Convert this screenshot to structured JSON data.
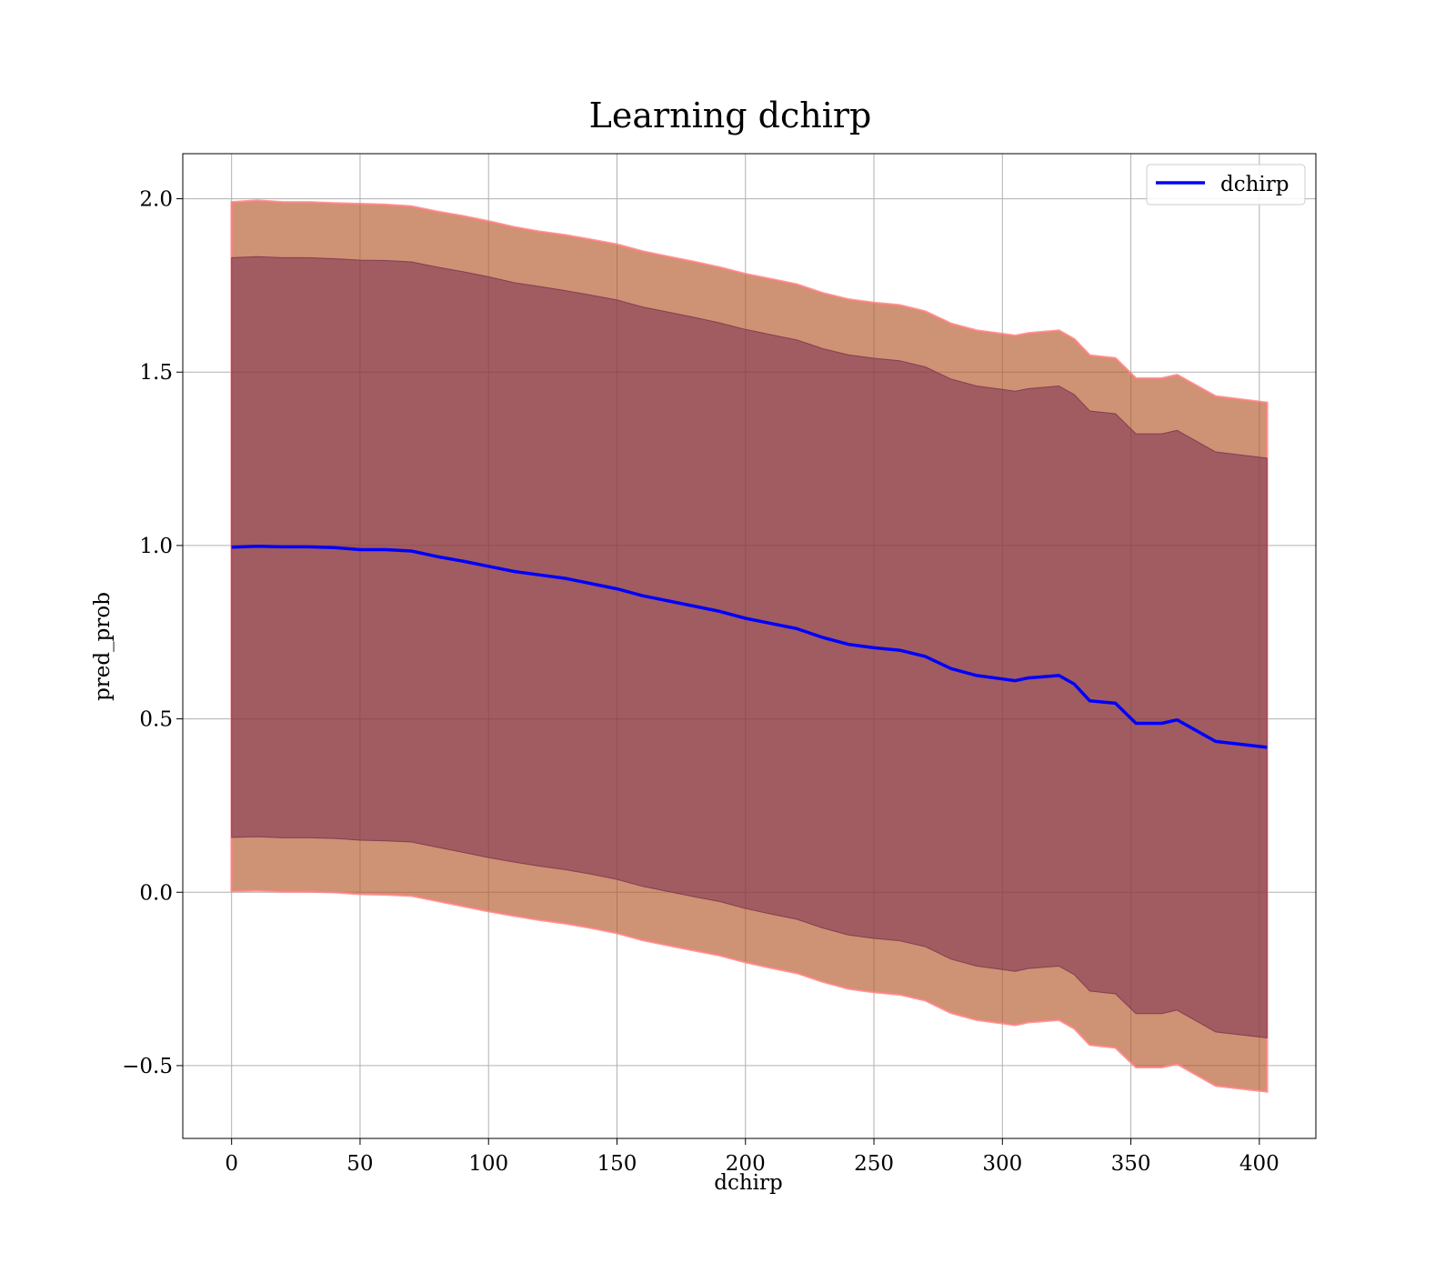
{
  "chart_data": {
    "type": "line",
    "title": "Learning dchirp",
    "xlabel": "dchirp",
    "ylabel": "pred_prob",
    "xlim": [
      -19,
      422
    ],
    "ylim": [
      -0.71,
      2.13
    ],
    "xticks": [
      0,
      50,
      100,
      150,
      200,
      250,
      300,
      350,
      400
    ],
    "xtick_labels": [
      "0",
      "50",
      "100",
      "150",
      "200",
      "250",
      "300",
      "350",
      "400"
    ],
    "yticks": [
      -0.5,
      0.0,
      0.5,
      1.0,
      1.5,
      2.0
    ],
    "ytick_labels": [
      "−0.5",
      "0.0",
      "0.5",
      "1.0",
      "1.5",
      "2.0"
    ],
    "grid": true,
    "legend_position": "top-right",
    "x": [
      0,
      10,
      20,
      30,
      40,
      50,
      60,
      70,
      80,
      90,
      100,
      110,
      120,
      130,
      140,
      150,
      160,
      170,
      180,
      190,
      200,
      210,
      220,
      230,
      240,
      250,
      260,
      270,
      280,
      290,
      300,
      305,
      310,
      322,
      328,
      334,
      344,
      352,
      362,
      368,
      383,
      403
    ],
    "series": [
      {
        "name": "dchirp",
        "color": "#0000ff",
        "values": [
          0.995,
          0.998,
          0.996,
          0.996,
          0.994,
          0.988,
          0.988,
          0.984,
          0.968,
          0.955,
          0.94,
          0.925,
          0.915,
          0.905,
          0.89,
          0.875,
          0.855,
          0.84,
          0.825,
          0.81,
          0.79,
          0.775,
          0.76,
          0.735,
          0.715,
          0.705,
          0.698,
          0.68,
          0.645,
          0.625,
          0.615,
          0.61,
          0.618,
          0.625,
          0.6,
          0.552,
          0.545,
          0.487,
          0.487,
          0.497,
          0.435,
          0.418
        ]
      }
    ],
    "bands": [
      {
        "label": "",
        "color": "#b4572a",
        "opacity": 0.65,
        "edge_color": "#ff8080",
        "upper": [
          1.99,
          1.995,
          1.99,
          1.99,
          1.987,
          1.985,
          1.983,
          1.978,
          1.963,
          1.95,
          1.935,
          1.918,
          1.905,
          1.895,
          1.882,
          1.868,
          1.848,
          1.833,
          1.818,
          1.802,
          1.783,
          1.768,
          1.753,
          1.728,
          1.71,
          1.7,
          1.693,
          1.675,
          1.64,
          1.62,
          1.61,
          1.605,
          1.612,
          1.62,
          1.595,
          1.548,
          1.54,
          1.482,
          1.482,
          1.492,
          1.43,
          1.412
        ],
        "lower": [
          0.003,
          0.005,
          0.002,
          0.002,
          0.0,
          -0.005,
          -0.007,
          -0.01,
          -0.025,
          -0.04,
          -0.055,
          -0.068,
          -0.08,
          -0.09,
          -0.103,
          -0.118,
          -0.138,
          -0.153,
          -0.168,
          -0.182,
          -0.202,
          -0.218,
          -0.233,
          -0.258,
          -0.278,
          -0.288,
          -0.295,
          -0.312,
          -0.348,
          -0.368,
          -0.378,
          -0.383,
          -0.375,
          -0.368,
          -0.393,
          -0.44,
          -0.448,
          -0.505,
          -0.505,
          -0.495,
          -0.558,
          -0.575
        ]
      },
      {
        "label": "",
        "color": "#7a3050",
        "opacity": 0.55,
        "edge_color": "#7a3050",
        "upper": [
          1.83,
          1.833,
          1.83,
          1.83,
          1.827,
          1.823,
          1.822,
          1.818,
          1.803,
          1.79,
          1.775,
          1.758,
          1.747,
          1.735,
          1.722,
          1.708,
          1.688,
          1.673,
          1.658,
          1.642,
          1.623,
          1.608,
          1.593,
          1.568,
          1.55,
          1.54,
          1.533,
          1.515,
          1.48,
          1.46,
          1.45,
          1.445,
          1.452,
          1.46,
          1.435,
          1.388,
          1.38,
          1.322,
          1.322,
          1.332,
          1.27,
          1.252
        ],
        "lower": [
          0.158,
          0.16,
          0.157,
          0.157,
          0.155,
          0.15,
          0.148,
          0.145,
          0.13,
          0.115,
          0.1,
          0.087,
          0.075,
          0.065,
          0.052,
          0.037,
          0.017,
          0.002,
          -0.013,
          -0.027,
          -0.047,
          -0.063,
          -0.078,
          -0.103,
          -0.123,
          -0.133,
          -0.14,
          -0.157,
          -0.193,
          -0.213,
          -0.223,
          -0.228,
          -0.22,
          -0.213,
          -0.238,
          -0.285,
          -0.293,
          -0.35,
          -0.35,
          -0.34,
          -0.403,
          -0.42
        ]
      }
    ]
  }
}
